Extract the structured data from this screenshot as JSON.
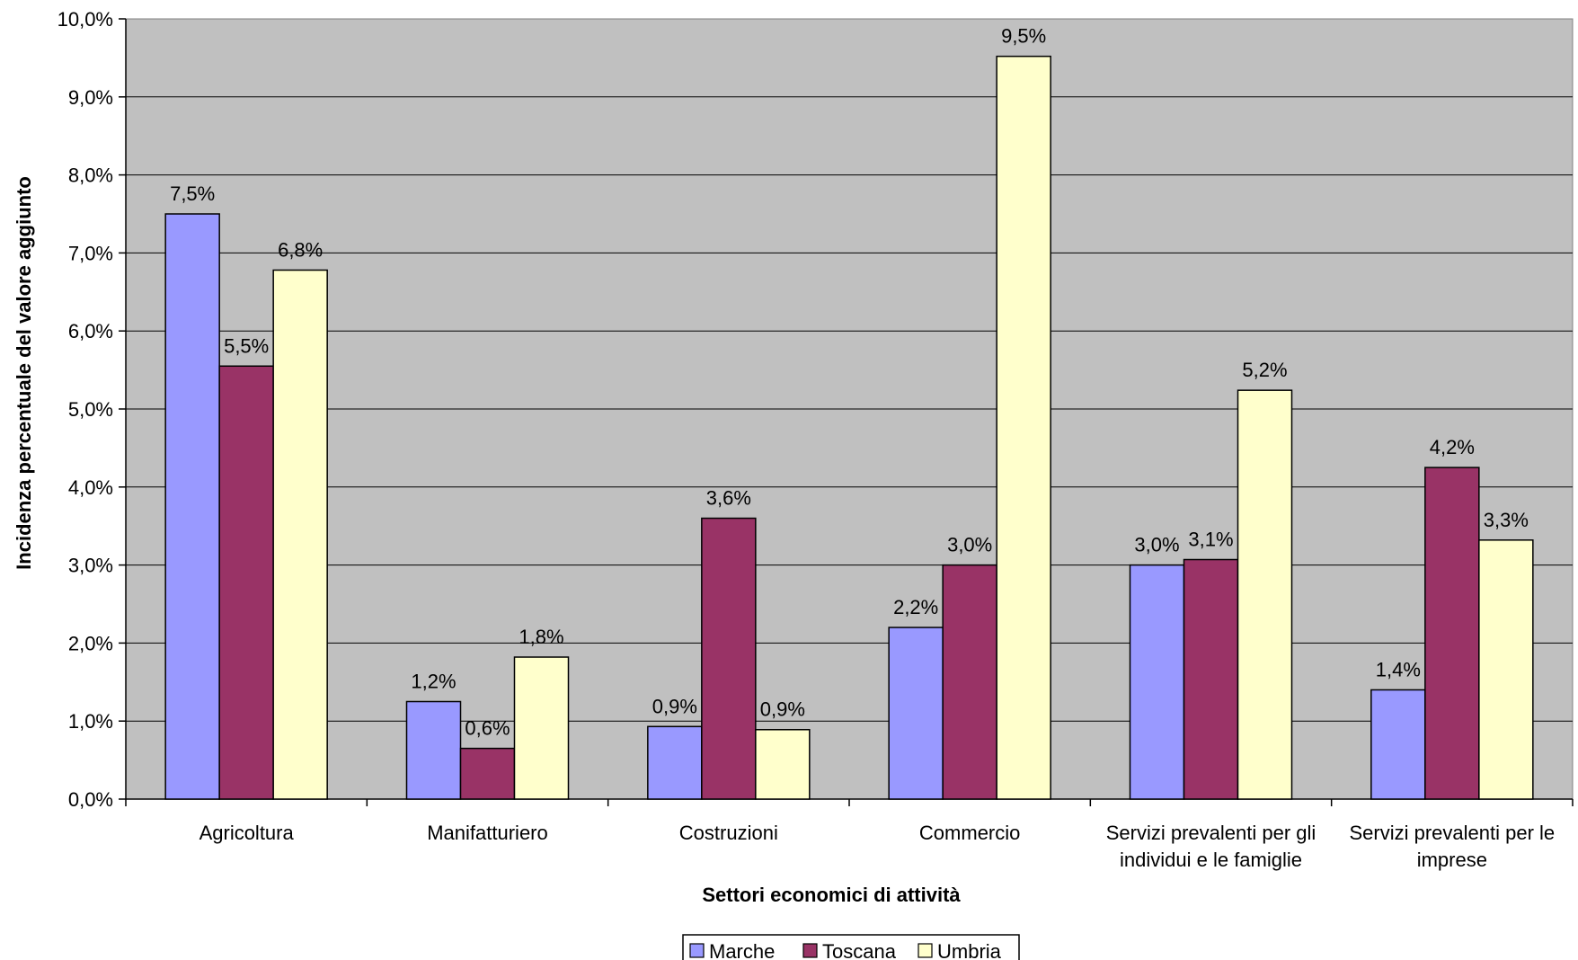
{
  "chart_data": {
    "type": "bar",
    "title": "",
    "xlabel": "Settori economici di attività",
    "ylabel": "Incidenza percentuale del valore aggiunto",
    "ylim": [
      0,
      10
    ],
    "y_ticks": [
      "0,0%",
      "1,0%",
      "2,0%",
      "3,0%",
      "4,0%",
      "5,0%",
      "6,0%",
      "7,0%",
      "8,0%",
      "9,0%",
      "10,0%"
    ],
    "categories": [
      [
        "Agricoltura"
      ],
      [
        "Manifatturiero"
      ],
      [
        "Costruzioni"
      ],
      [
        "Commercio"
      ],
      [
        "Servizi prevalenti per gli",
        "individui e le famiglie"
      ],
      [
        "Servizi prevalenti per le",
        "imprese"
      ]
    ],
    "series": [
      {
        "name": "Marche",
        "color": "#9999ff",
        "values": [
          7.5,
          1.25,
          0.93,
          2.2,
          3.0,
          1.4
        ],
        "labels": [
          "7,5%",
          "1,2%",
          "0,9%",
          "2,2%",
          "3,0%",
          "1,4%"
        ]
      },
      {
        "name": "Toscana",
        "color": "#993366",
        "values": [
          5.55,
          0.65,
          3.6,
          3.0,
          3.07,
          4.25
        ],
        "labels": [
          "5,5%",
          "0,6%",
          "3,6%",
          "3,0%",
          "3,1%",
          "4,2%"
        ]
      },
      {
        "name": "Umbria",
        "color": "#ffffcc",
        "values": [
          6.78,
          1.82,
          0.89,
          9.52,
          5.24,
          3.32
        ],
        "labels": [
          "6,8%",
          "1,8%",
          "0,9%",
          "9,5%",
          "5,2%",
          "3,3%"
        ]
      }
    ],
    "plot_background": "#c0c0c0",
    "grid": true,
    "legend_position": "bottom"
  }
}
